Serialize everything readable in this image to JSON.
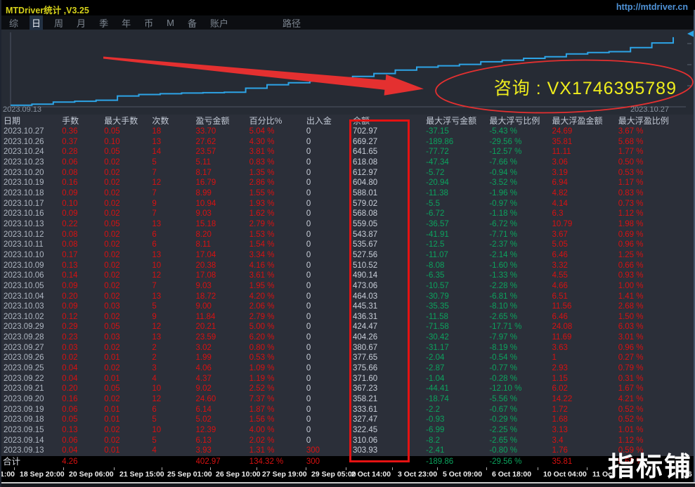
{
  "titlebar": {
    "title": "MTDriver统计 ,V3.25",
    "url": "http://mtdriver.cn"
  },
  "menu": {
    "items": [
      {
        "label": "综",
        "active": false
      },
      {
        "label": "日",
        "active": true
      },
      {
        "label": "周",
        "active": false
      },
      {
        "label": "月",
        "active": false
      },
      {
        "label": "季",
        "active": false
      },
      {
        "label": "年",
        "active": false
      },
      {
        "label": "币",
        "active": false
      },
      {
        "label": "M",
        "active": false
      },
      {
        "label": "备",
        "active": false
      },
      {
        "label": "账户",
        "active": false
      },
      {
        "label": "路径",
        "active": false,
        "gap": true
      }
    ]
  },
  "chart": {
    "start_date": "2023.09.13",
    "end_date": "2023.10.27",
    "annotation": "咨询 : VX1746395789",
    "line_color": "#2da4e6",
    "annotation_color": "#efed1d",
    "chart_data": {
      "type": "line",
      "title": "",
      "xlabel": "",
      "ylabel": "",
      "x": [
        "2023.09.13",
        "2023.09.14",
        "2023.09.15",
        "2023.09.18",
        "2023.09.19",
        "2023.09.20",
        "2023.09.21",
        "2023.09.22",
        "2023.09.25",
        "2023.09.26",
        "2023.09.27",
        "2023.09.28",
        "2023.09.29",
        "2023.10.02",
        "2023.10.03",
        "2023.10.04",
        "2023.10.05",
        "2023.10.06",
        "2023.10.09",
        "2023.10.10",
        "2023.10.11",
        "2023.10.12",
        "2023.10.13",
        "2023.10.16",
        "2023.10.17",
        "2023.10.18",
        "2023.10.19",
        "2023.10.20",
        "2023.10.23",
        "2023.10.24",
        "2023.10.26",
        "2023.10.27"
      ],
      "series": [
        {
          "name": "余额",
          "values": [
            303.93,
            310.06,
            322.45,
            327.47,
            333.61,
            358.21,
            367.23,
            371.6,
            375.66,
            377.65,
            380.67,
            404.26,
            424.47,
            436.31,
            445.31,
            464.03,
            473.06,
            490.14,
            510.52,
            527.56,
            535.67,
            543.87,
            559.05,
            568.08,
            579.02,
            588.01,
            604.8,
            612.97,
            618.08,
            641.65,
            669.27,
            702.97
          ]
        }
      ],
      "ylim": [
        295,
        715
      ],
      "grid": false,
      "legend": false
    }
  },
  "table": {
    "headers": [
      "日期",
      "手数",
      "最大手数",
      "次数",
      "盈亏金额",
      "百分比%",
      "出入金",
      "余额",
      "最大浮亏金额",
      "最大浮亏比例",
      "最大浮盈金额",
      "最大浮盈比例"
    ],
    "rows": [
      [
        "2023.10.27",
        "0.36",
        "0.05",
        "18",
        "33.70",
        "5.04 %",
        "0",
        "702.97",
        "-37.15",
        "-5.43 %",
        "24.69",
        "3.67 %"
      ],
      [
        "2023.10.26",
        "0.37",
        "0.10",
        "13",
        "27.62",
        "4.30 %",
        "0",
        "669.27",
        "-189.86",
        "-29.56 %",
        "35.81",
        "5.68 %"
      ],
      [
        "2023.10.24",
        "0.28",
        "0.05",
        "14",
        "23.57",
        "3.81 %",
        "0",
        "641.65",
        "-77.72",
        "-12.57 %",
        "11.11",
        "1.77 %"
      ],
      [
        "2023.10.23",
        "0.06",
        "0.02",
        "5",
        "5.11",
        "0.83 %",
        "0",
        "618.08",
        "-47.34",
        "-7.66 %",
        "3.06",
        "0.50 %"
      ],
      [
        "2023.10.20",
        "0.08",
        "0.02",
        "7",
        "8.17",
        "1.35 %",
        "0",
        "612.97",
        "-5.72",
        "-0.94 %",
        "3.19",
        "0.53 %"
      ],
      [
        "2023.10.19",
        "0.16",
        "0.02",
        "12",
        "16.79",
        "2.86 %",
        "0",
        "604.80",
        "-20.94",
        "-3.52 %",
        "6.94",
        "1.17 %"
      ],
      [
        "2023.10.18",
        "0.09",
        "0.02",
        "7",
        "8.99",
        "1.55 %",
        "0",
        "588.01",
        "-11.38",
        "-1.96 %",
        "4.82",
        "0.83 %"
      ],
      [
        "2023.10.17",
        "0.10",
        "0.02",
        "9",
        "10.94",
        "1.93 %",
        "0",
        "579.02",
        "-5.5",
        "-0.97 %",
        "4.14",
        "0.73 %"
      ],
      [
        "2023.10.16",
        "0.09",
        "0.02",
        "7",
        "9.03",
        "1.62 %",
        "0",
        "568.08",
        "-6.72",
        "-1.18 %",
        "6.3",
        "1.12 %"
      ],
      [
        "2023.10.13",
        "0.22",
        "0.05",
        "13",
        "15.18",
        "2.79 %",
        "0",
        "559.05",
        "-36.57",
        "-6.72 %",
        "10.79",
        "1.98 %"
      ],
      [
        "2023.10.12",
        "0.08",
        "0.02",
        "6",
        "8.20",
        "1.53 %",
        "0",
        "543.87",
        "-41.91",
        "-7.71 %",
        "3.67",
        "0.69 %"
      ],
      [
        "2023.10.11",
        "0.08",
        "0.02",
        "6",
        "8.11",
        "1.54 %",
        "0",
        "535.67",
        "-12.5",
        "-2.37 %",
        "5.05",
        "0.96 %"
      ],
      [
        "2023.10.10",
        "0.17",
        "0.02",
        "13",
        "17.04",
        "3.34 %",
        "0",
        "527.56",
        "-11.07",
        "-2.14 %",
        "6.46",
        "1.25 %"
      ],
      [
        "2023.10.09",
        "0.13",
        "0.02",
        "10",
        "20.38",
        "4.16 %",
        "0",
        "510.52",
        "-8.08",
        "-1.60 %",
        "3.32",
        "0.66 %"
      ],
      [
        "2023.10.06",
        "0.14",
        "0.02",
        "12",
        "17.08",
        "3.61 %",
        "0",
        "490.14",
        "-6.35",
        "-1.33 %",
        "4.55",
        "0.93 %"
      ],
      [
        "2023.10.05",
        "0.09",
        "0.02",
        "7",
        "9.03",
        "1.95 %",
        "0",
        "473.06",
        "-10.57",
        "-2.28 %",
        "4.66",
        "1.00 %"
      ],
      [
        "2023.10.04",
        "0.20",
        "0.02",
        "13",
        "18.72",
        "4.20 %",
        "0",
        "464.03",
        "-30.79",
        "-6.81 %",
        "6.51",
        "1.41 %"
      ],
      [
        "2023.10.03",
        "0.09",
        "0.03",
        "5",
        "9.00",
        "2.06 %",
        "0",
        "445.31",
        "-35.35",
        "-8.10 %",
        "11.56",
        "2.68 %"
      ],
      [
        "2023.10.02",
        "0.12",
        "0.02",
        "9",
        "11.84",
        "2.79 %",
        "0",
        "436.31",
        "-11.58",
        "-2.65 %",
        "6.46",
        "1.50 %"
      ],
      [
        "2023.09.29",
        "0.29",
        "0.05",
        "12",
        "20.21",
        "5.00 %",
        "0",
        "424.47",
        "-71.58",
        "-17.71 %",
        "24.08",
        "6.03 %"
      ],
      [
        "2023.09.28",
        "0.23",
        "0.03",
        "13",
        "23.59",
        "6.20 %",
        "0",
        "404.26",
        "-30.42",
        "-7.97 %",
        "11.69",
        "3.01 %"
      ],
      [
        "2023.09.27",
        "0.03",
        "0.02",
        "2",
        "3.02",
        "0.80 %",
        "0",
        "380.67",
        "-31.17",
        "-8.19 %",
        "3.63",
        "0.96 %"
      ],
      [
        "2023.09.26",
        "0.02",
        "0.01",
        "2",
        "1.99",
        "0.53 %",
        "0",
        "377.65",
        "-2.04",
        "-0.54 %",
        "1",
        "0.27 %"
      ],
      [
        "2023.09.25",
        "0.04",
        "0.02",
        "3",
        "4.06",
        "1.09 %",
        "0",
        "375.66",
        "-2.87",
        "-0.77 %",
        "2.93",
        "0.79 %"
      ],
      [
        "2023.09.22",
        "0.04",
        "0.01",
        "4",
        "4.37",
        "1.19 %",
        "0",
        "371.60",
        "-1.04",
        "-0.28 %",
        "1.15",
        "0.31 %"
      ],
      [
        "2023.09.21",
        "0.20",
        "0.05",
        "10",
        "9.02",
        "2.52 %",
        "0",
        "367.23",
        "-44.41",
        "-12.10 %",
        "6.02",
        "1.67 %"
      ],
      [
        "2023.09.20",
        "0.16",
        "0.02",
        "12",
        "24.60",
        "7.37 %",
        "0",
        "358.21",
        "-18.74",
        "-5.56 %",
        "14.22",
        "4.21 %"
      ],
      [
        "2023.09.19",
        "0.06",
        "0.01",
        "6",
        "6.14",
        "1.87 %",
        "0",
        "333.61",
        "-2.2",
        "-0.67 %",
        "1.72",
        "0.52 %"
      ],
      [
        "2023.09.18",
        "0.05",
        "0.01",
        "5",
        "5.02",
        "1.56 %",
        "0",
        "327.47",
        "-0.93",
        "-0.29 %",
        "1.68",
        "0.52 %"
      ],
      [
        "2023.09.15",
        "0.13",
        "0.02",
        "10",
        "12.39",
        "4.00 %",
        "0",
        "322.45",
        "-6.99",
        "-2.25 %",
        "3.13",
        "1.01 %"
      ],
      [
        "2023.09.14",
        "0.06",
        "0.02",
        "5",
        "6.13",
        "2.02 %",
        "0",
        "310.06",
        "-8.2",
        "-2.65 %",
        "3.4",
        "1.12 %"
      ],
      [
        "2023.09.13",
        "0.04",
        "0.01",
        "4",
        "3.93",
        "1.31 %",
        "300",
        "303.93",
        "-2.41",
        "-0.80 %",
        "1.76",
        "0.59 %"
      ]
    ],
    "total": [
      "合计",
      "4.26",
      "",
      "",
      "402.97",
      "134.32 %",
      "300",
      "",
      "-189.86",
      "-29.56 %",
      "35.81",
      "5.68 %"
    ]
  },
  "timeline": {
    "labels": [
      "1:00",
      "18 Sep 20:00",
      "20 Sep 06:00",
      "21 Sep 15:00",
      "25 Sep 01:00",
      "26 Sep 10:00",
      "27 Sep 19:00",
      "29 Sep 05:00",
      "2 Oct 14:00",
      "3 Oct 23:00",
      "5 Oct 09:00",
      "6 Oct 18:00",
      "10 Oct 04:00",
      "11 Oct",
      "16 Oct"
    ],
    "positions": [
      0,
      28,
      98,
      170,
      238,
      307,
      373,
      443,
      500,
      566,
      630,
      700,
      773,
      843,
      973
    ]
  },
  "watermark": "指标铺",
  "colors": {
    "accent_yellow": "#d6d21a",
    "link_blue": "#4f93d8",
    "value_red": "#d91111",
    "value_green": "#0ca35e",
    "line_blue": "#2da4e6",
    "annotation_red": "#e41212"
  }
}
